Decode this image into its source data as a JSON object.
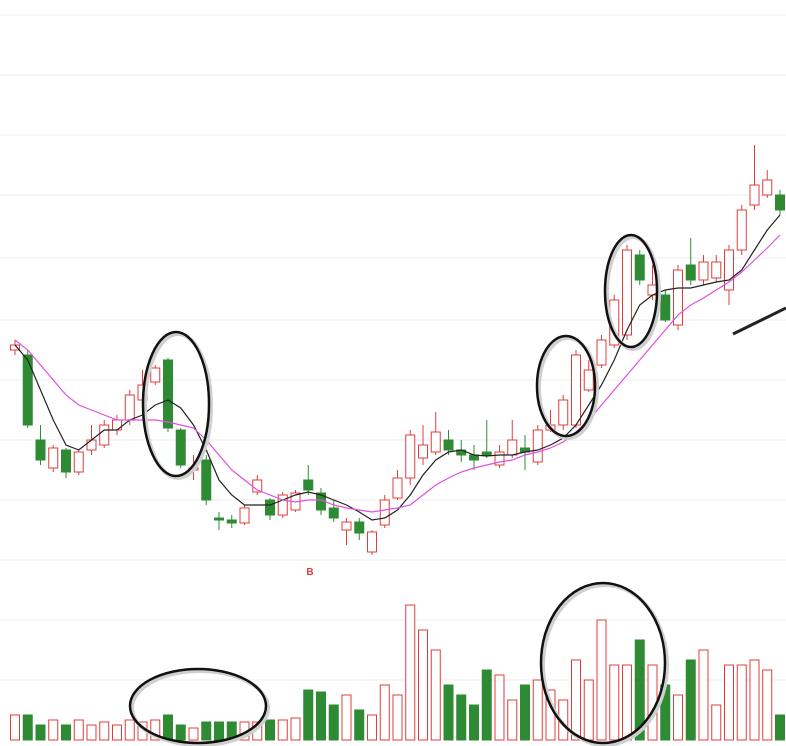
{
  "chart_data": {
    "type": "candlestick",
    "open": [
      250,
      245,
      160,
      132,
      150,
      128,
      150,
      155,
      170,
      180,
      200,
      218,
      240,
      170,
      130,
      140,
      82,
      80,
      77,
      108,
      100,
      85,
      90,
      120,
      107,
      92,
      70,
      78,
      48,
      75,
      102,
      122,
      142,
      148,
      160,
      150,
      145,
      148,
      135,
      145,
      152,
      138,
      170,
      175,
      175,
      210,
      235,
      255,
      265,
      345,
      305,
      305,
      275,
      335,
      320,
      322,
      310,
      350,
      395,
      405,
      405
    ],
    "high": [
      260,
      250,
      175,
      155,
      152,
      150,
      175,
      180,
      185,
      210,
      230,
      235,
      242,
      172,
      145,
      145,
      88,
      85,
      95,
      125,
      102,
      108,
      110,
      135,
      112,
      100,
      82,
      82,
      70,
      105,
      130,
      170,
      175,
      188,
      170,
      160,
      155,
      180,
      155,
      180,
      165,
      175,
      190,
      205,
      250,
      240,
      265,
      305,
      355,
      350,
      335,
      310,
      335,
      362,
      345,
      345,
      355,
      395,
      455,
      430,
      410
    ],
    "low": [
      245,
      172,
      135,
      128,
      122,
      125,
      145,
      152,
      165,
      175,
      195,
      215,
      168,
      132,
      120,
      95,
      70,
      72,
      75,
      105,
      80,
      82,
      88,
      105,
      85,
      78,
      55,
      60,
      45,
      72,
      100,
      115,
      135,
      145,
      145,
      138,
      130,
      142,
      132,
      142,
      130,
      135,
      168,
      170,
      172,
      208,
      232,
      252,
      260,
      315,
      300,
      278,
      270,
      315,
      315,
      318,
      295,
      345,
      390,
      402,
      385
    ],
    "close": [
      255,
      175,
      140,
      152,
      128,
      148,
      160,
      175,
      180,
      205,
      215,
      232,
      172,
      135,
      132,
      100,
      80,
      77,
      92,
      120,
      85,
      105,
      107,
      110,
      90,
      82,
      78,
      67,
      68,
      100,
      122,
      165,
      155,
      168,
      150,
      145,
      140,
      145,
      148,
      160,
      148,
      170,
      175,
      200,
      245,
      230,
      260,
      300,
      350,
      320,
      315,
      280,
      330,
      320,
      338,
      338,
      350,
      390,
      415,
      420,
      390
    ],
    "volume": [
      25,
      25,
      15,
      20,
      15,
      20,
      15,
      18,
      15,
      20,
      18,
      20,
      25,
      15,
      12,
      18,
      18,
      18,
      18,
      18,
      20,
      20,
      22,
      50,
      48,
      35,
      45,
      30,
      25,
      55,
      45,
      135,
      110,
      90,
      55,
      45,
      35,
      70,
      65,
      40,
      55,
      60,
      50,
      40,
      80,
      60,
      120,
      75,
      75,
      100,
      75,
      55,
      45,
      80,
      90,
      35,
      75,
      75,
      80,
      70,
      25
    ],
    "ma_lines": [
      {
        "color": "#222222",
        "values": [
          255,
          240,
          210,
          180,
          155,
          150,
          160,
          170,
          170,
          180,
          185,
          195,
          200,
          192,
          175,
          150,
          120,
          105,
          95,
          95,
          95,
          100,
          105,
          108,
          105,
          100,
          95,
          88,
          80,
          82,
          90,
          105,
          125,
          140,
          148,
          150,
          145,
          144,
          145,
          145,
          148,
          150,
          155,
          162,
          175,
          195,
          215,
          240,
          270,
          295,
          305,
          310,
          312,
          312,
          315,
          318,
          320,
          330,
          350,
          370,
          385
        ]
      },
      {
        "color": "#e050e0",
        "values": [
          260,
          250,
          235,
          220,
          205,
          195,
          190,
          185,
          180,
          180,
          180,
          180,
          178,
          175,
          172,
          160,
          145,
          130,
          120,
          110,
          105,
          100,
          98,
          100,
          100,
          95,
          92,
          90,
          88,
          90,
          92,
          95,
          105,
          115,
          122,
          128,
          132,
          135,
          138,
          140,
          145,
          148,
          152,
          158,
          168,
          180,
          195,
          210,
          225,
          240,
          255,
          270,
          285,
          295,
          302,
          310,
          318,
          328,
          340,
          352,
          365
        ]
      }
    ],
    "up_color": "#e03c3c",
    "down_color": "#2e8b34",
    "ylim": [
      0,
      600
    ],
    "volume_ylim": [
      0,
      160
    ],
    "marker": "B"
  }
}
